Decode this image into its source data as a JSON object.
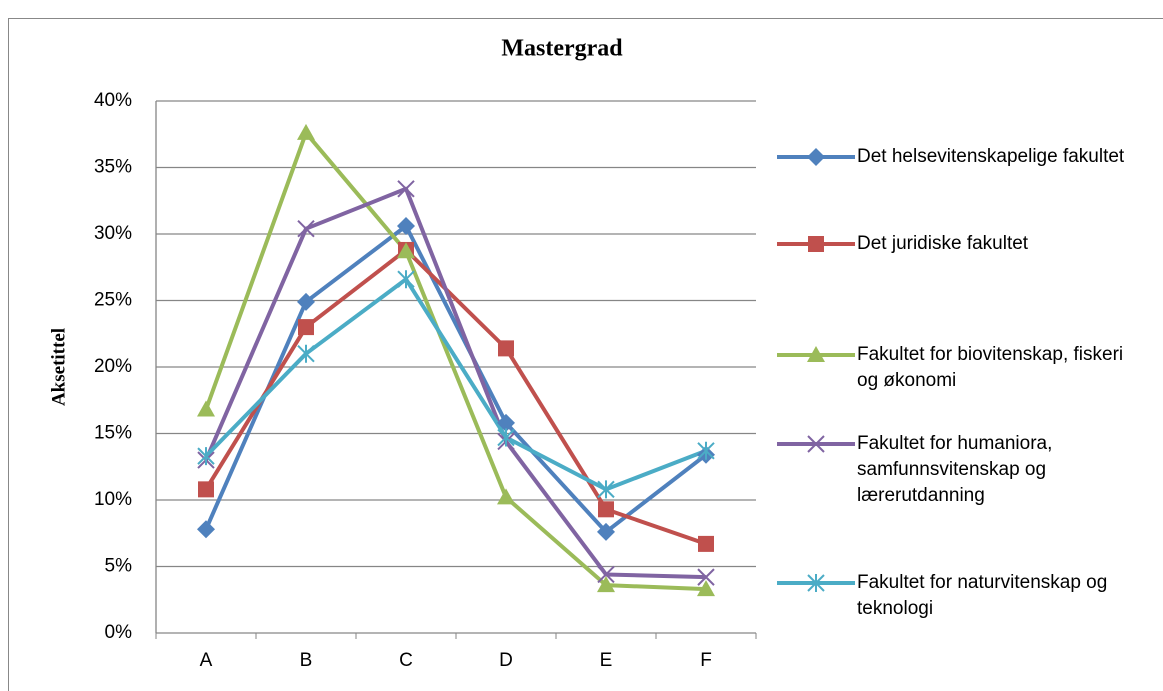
{
  "chart_data": {
    "type": "line",
    "title": "Mastergrad",
    "y_label": "Aksetittel",
    "categories": [
      "A",
      "B",
      "C",
      "D",
      "E",
      "F"
    ],
    "ylim": [
      0,
      40
    ],
    "yticks": [
      {
        "value": 0,
        "label": "0%"
      },
      {
        "value": 5,
        "label": "5%"
      },
      {
        "value": 10,
        "label": "10%"
      },
      {
        "value": 15,
        "label": "15%"
      },
      {
        "value": 20,
        "label": "20%"
      },
      {
        "value": 25,
        "label": "25%"
      },
      {
        "value": 30,
        "label": "30%"
      },
      {
        "value": 35,
        "label": "35%"
      },
      {
        "value": 40,
        "label": "40%"
      }
    ],
    "grid": true,
    "legend": "right",
    "series": [
      {
        "name": "Det helsevitenskapelige fakultet",
        "color": "#4f81bd",
        "marker": "diamond",
        "values": [
          7.8,
          24.9,
          30.6,
          15.8,
          7.6,
          13.4
        ]
      },
      {
        "name": "Det juridiske fakultet",
        "color": "#c0504d",
        "marker": "square",
        "values": [
          10.8,
          23.0,
          28.8,
          21.4,
          9.3,
          6.7
        ]
      },
      {
        "name": "Fakultet for biovitenskap, fiskeri og økonomi",
        "color": "#9bbb59",
        "marker": "triangle",
        "values": [
          16.8,
          37.6,
          28.7,
          10.2,
          3.6,
          3.3
        ]
      },
      {
        "name": "Fakultet for humaniora, samfunnsvitenskap og lærerutdanning",
        "color": "#8064a2",
        "marker": "x",
        "values": [
          13.0,
          30.4,
          33.4,
          14.4,
          4.4,
          4.2
        ]
      },
      {
        "name": "Fakultet for naturvitenskap og teknologi",
        "color": "#4bacc6",
        "marker": "star",
        "values": [
          13.3,
          21.0,
          26.6,
          14.7,
          10.8,
          13.7
        ]
      }
    ]
  }
}
